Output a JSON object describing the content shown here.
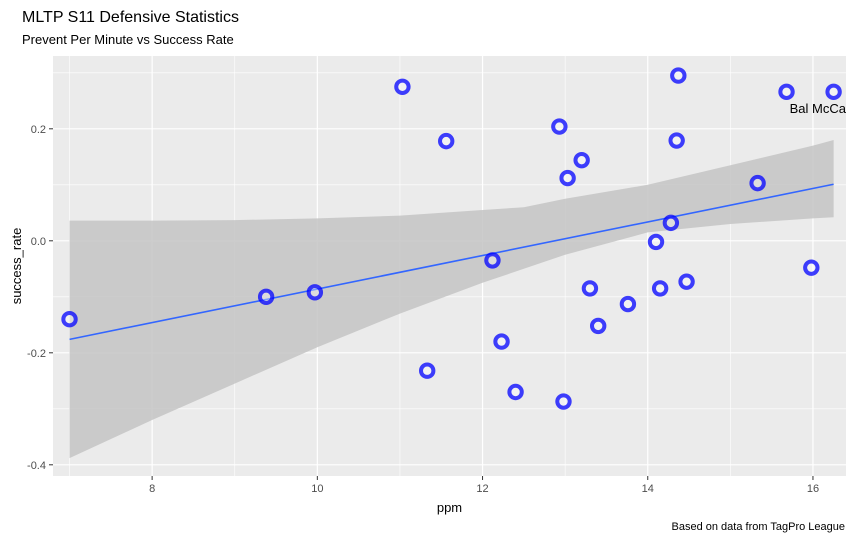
{
  "chart_data": {
    "type": "scatter",
    "title": "MLTP S11 Defensive Statistics",
    "subtitle": "Prevent Per Minute vs Success Rate",
    "xlabel": "ppm",
    "ylabel": "success_rate",
    "caption": "Based on data from TagPro League",
    "xlim": [
      6.8,
      16.4
    ],
    "ylim": [
      -0.42,
      0.33
    ],
    "x_ticks": [
      8,
      10,
      12,
      14,
      16
    ],
    "y_ticks": [
      -0.4,
      -0.2,
      0.0,
      0.2
    ],
    "x_tick_labels": [
      "8",
      "10",
      "12",
      "14",
      "16"
    ],
    "y_tick_labels": [
      "-0.4",
      "-0.2",
      "0.0",
      "0.2"
    ],
    "grid": true,
    "points": [
      {
        "x": 7.0,
        "y": -0.14
      },
      {
        "x": 9.38,
        "y": -0.1
      },
      {
        "x": 9.97,
        "y": -0.092
      },
      {
        "x": 11.03,
        "y": 0.275
      },
      {
        "x": 11.33,
        "y": -0.232
      },
      {
        "x": 11.56,
        "y": 0.178
      },
      {
        "x": 12.12,
        "y": -0.035
      },
      {
        "x": 12.23,
        "y": -0.18
      },
      {
        "x": 12.4,
        "y": -0.27
      },
      {
        "x": 12.93,
        "y": 0.204
      },
      {
        "x": 12.98,
        "y": -0.287
      },
      {
        "x": 13.03,
        "y": 0.112
      },
      {
        "x": 13.2,
        "y": 0.144
      },
      {
        "x": 13.3,
        "y": -0.085
      },
      {
        "x": 13.4,
        "y": -0.152
      },
      {
        "x": 13.76,
        "y": -0.113
      },
      {
        "x": 14.1,
        "y": -0.002
      },
      {
        "x": 14.15,
        "y": -0.085
      },
      {
        "x": 14.28,
        "y": 0.032
      },
      {
        "x": 14.35,
        "y": 0.179
      },
      {
        "x": 14.37,
        "y": 0.295
      },
      {
        "x": 14.47,
        "y": -0.073
      },
      {
        "x": 15.33,
        "y": 0.103
      },
      {
        "x": 15.68,
        "y": 0.266
      },
      {
        "x": 15.98,
        "y": -0.048
      },
      {
        "x": 16.25,
        "y": 0.266
      }
    ],
    "point_labels": [
      {
        "x": 16.25,
        "y": 0.266,
        "text": "Bal McCartney"
      }
    ],
    "trend": {
      "type": "linear",
      "x": [
        7.0,
        16.25
      ],
      "y": [
        -0.176,
        0.101
      ]
    },
    "confidence_band": {
      "x": [
        7.0,
        8.0,
        9.0,
        10.0,
        11.0,
        12.0,
        12.5,
        13.0,
        14.0,
        15.0,
        16.0,
        16.25
      ],
      "lower": [
        -0.388,
        -0.32,
        -0.255,
        -0.19,
        -0.13,
        -0.075,
        -0.05,
        -0.025,
        0.015,
        0.03,
        0.04,
        0.042
      ],
      "upper": [
        0.036,
        0.036,
        0.037,
        0.04,
        0.045,
        0.055,
        0.06,
        0.075,
        0.1,
        0.135,
        0.17,
        0.18
      ]
    },
    "colors": {
      "panel": "#ebebeb",
      "grid_major": "#ffffff",
      "point": "#0000ff",
      "trend": "#3366ff",
      "band": "#c4c4c4",
      "tick_text": "#4d4d4d"
    }
  }
}
